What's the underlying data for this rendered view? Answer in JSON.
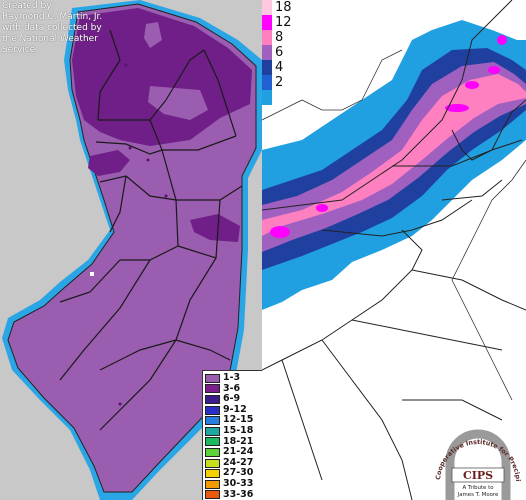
{
  "credit": {
    "line1": "Created by",
    "line2": "Raymond C. Martin, Jr.",
    "line3": "with data collected by",
    "line4": "the National Weather",
    "line5": "Service"
  },
  "nj_legend": {
    "items": [
      {
        "label": "1-3",
        "color": "#9a5db0"
      },
      {
        "label": "3-6",
        "color": "#7a1f8c"
      },
      {
        "label": "6-9",
        "color": "#3a1d8a"
      },
      {
        "label": "9-12",
        "color": "#2a2ec8"
      },
      {
        "label": "12-15",
        "color": "#2a7ee0"
      },
      {
        "label": "15-18",
        "color": "#1ea8a0"
      },
      {
        "label": "18-21",
        "color": "#1eb860"
      },
      {
        "label": "21-24",
        "color": "#5fd23a"
      },
      {
        "label": "24-27",
        "color": "#c8e020"
      },
      {
        "label": "27-30",
        "color": "#f4d000"
      },
      {
        "label": "30-33",
        "color": "#f49a00"
      },
      {
        "label": "33-36",
        "color": "#e85a10"
      }
    ]
  },
  "ne_legend": {
    "items": [
      {
        "label": "18",
        "color": "#ffc8e0"
      },
      {
        "label": "12",
        "color": "#ff00ff"
      },
      {
        "label": "8",
        "color": "#ff80c0"
      },
      {
        "label": "6",
        "color": "#a060c0"
      },
      {
        "label": "4",
        "color": "#2040a0"
      },
      {
        "label": "2",
        "color": "#2060d0"
      },
      {
        "label": "",
        "color": "#20a0e0"
      }
    ]
  },
  "colors": {
    "nj_light": "#9a5db0",
    "nj_dark": "#6f1f87",
    "nj_fringe": "#2aa6e6",
    "nj_background": "#c8c8c8"
  },
  "logo": {
    "arc_text": "Cooperative Institute for Precipitation Systems",
    "name": "CIPS",
    "tribute_line1": "A Tribute to",
    "tribute_line2": "James T. Moore"
  }
}
